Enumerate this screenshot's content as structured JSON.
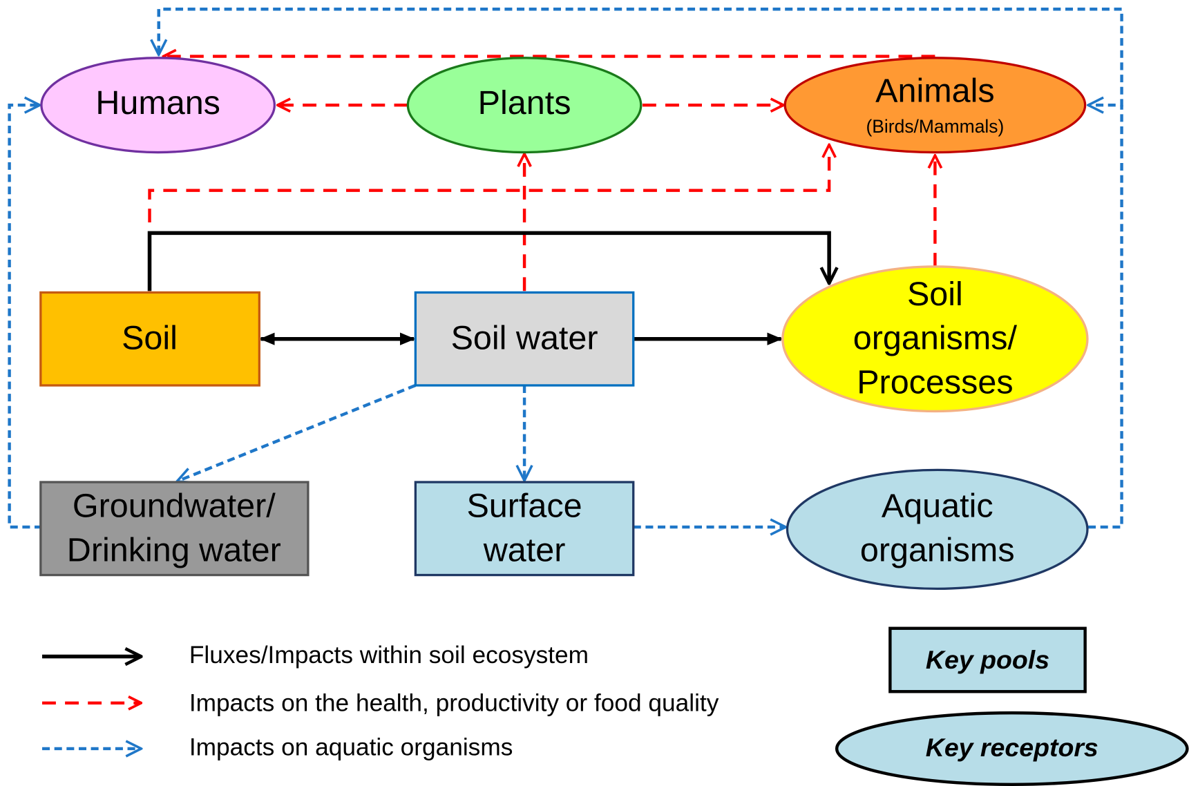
{
  "nodes": [
    {
      "label": [
        "Humans"
      ]
    },
    {
      "label": [
        "Plants"
      ]
    },
    {
      "label": [
        "Animals"
      ],
      "sublabel": "(Birds/Mammals)"
    },
    {
      "label": [
        "Soil"
      ]
    },
    {
      "label": [
        "Soil water"
      ]
    },
    {
      "label": [
        "Soil",
        "organisms/",
        "Processes"
      ]
    },
    {
      "label": [
        "Groundwater/",
        "Drinking water"
      ]
    },
    {
      "label": [
        "Surface",
        "water"
      ]
    },
    {
      "label": [
        "Aquatic",
        "organisms"
      ]
    }
  ],
  "legend": {
    "items": [
      "Fluxes/Impacts within soil ecosystem",
      "Impacts on the health, productivity or food quality",
      "Impacts on aquatic organisms"
    ],
    "key_pools": "Key pools",
    "key_receptors": "Key receptors"
  }
}
